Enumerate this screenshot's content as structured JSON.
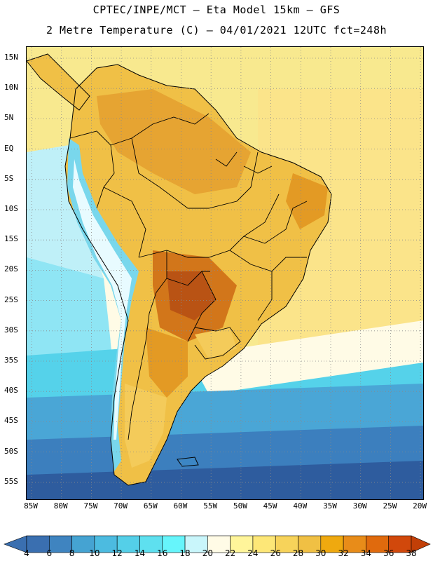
{
  "header": {
    "line1": "CPTEC/INPE/MCT –  Eta Model 15km – GFS",
    "line2": "2 Metre Temperature (C) – 04/01/2021 12UTC fct=248h"
  },
  "axes": {
    "lat_labels": [
      "15N",
      "10N",
      "5N",
      "EQ",
      "5S",
      "10S",
      "15S",
      "20S",
      "25S",
      "30S",
      "35S",
      "40S",
      "45S",
      "50S",
      "55S"
    ],
    "lon_labels": [
      "85W",
      "80W",
      "75W",
      "70W",
      "65W",
      "60W",
      "55W",
      "50W",
      "45W",
      "40W",
      "35W",
      "30W",
      "25W",
      "20W"
    ]
  },
  "legend": {
    "labels": [
      "4",
      "6",
      "8",
      "10",
      "12",
      "14",
      "16",
      "18",
      "20",
      "22",
      "24",
      "26",
      "28",
      "30",
      "32",
      "34",
      "36",
      "38"
    ],
    "colors": [
      "#3a6fb0",
      "#3f84c0",
      "#45a3d2",
      "#4cbbe0",
      "#54cfe8",
      "#5ee0ef",
      "#66f5fb",
      "#c9f6fb",
      "#fffbe6",
      "#fff59a",
      "#fde777",
      "#f7d35a",
      "#f0c044",
      "#efa90f",
      "#e88c19",
      "#e06a0d",
      "#d1480b"
    ],
    "under_color": "#3a6fb0",
    "over_color": "#c23f07"
  },
  "map_colors": {
    "ocean_deep": "#2e5c9e",
    "ocean_mid": "#3c86c4",
    "ocean_cyan": "#55d2ea",
    "ocean_light": "#9ee8f5",
    "ocean_pale": "#fffbe6",
    "ocean_warm": "#fbe48a",
    "ocean_yellow": "#f8e98f",
    "land_base": "#f0c046",
    "land_hot": "#e39a24",
    "land_hotter": "#d2761a",
    "land_hottest": "#b95314",
    "andes_cool": "#79d7ec",
    "andes_snow": "#e8fbff",
    "border": "#000000",
    "grid": "#8a8a8a"
  }
}
